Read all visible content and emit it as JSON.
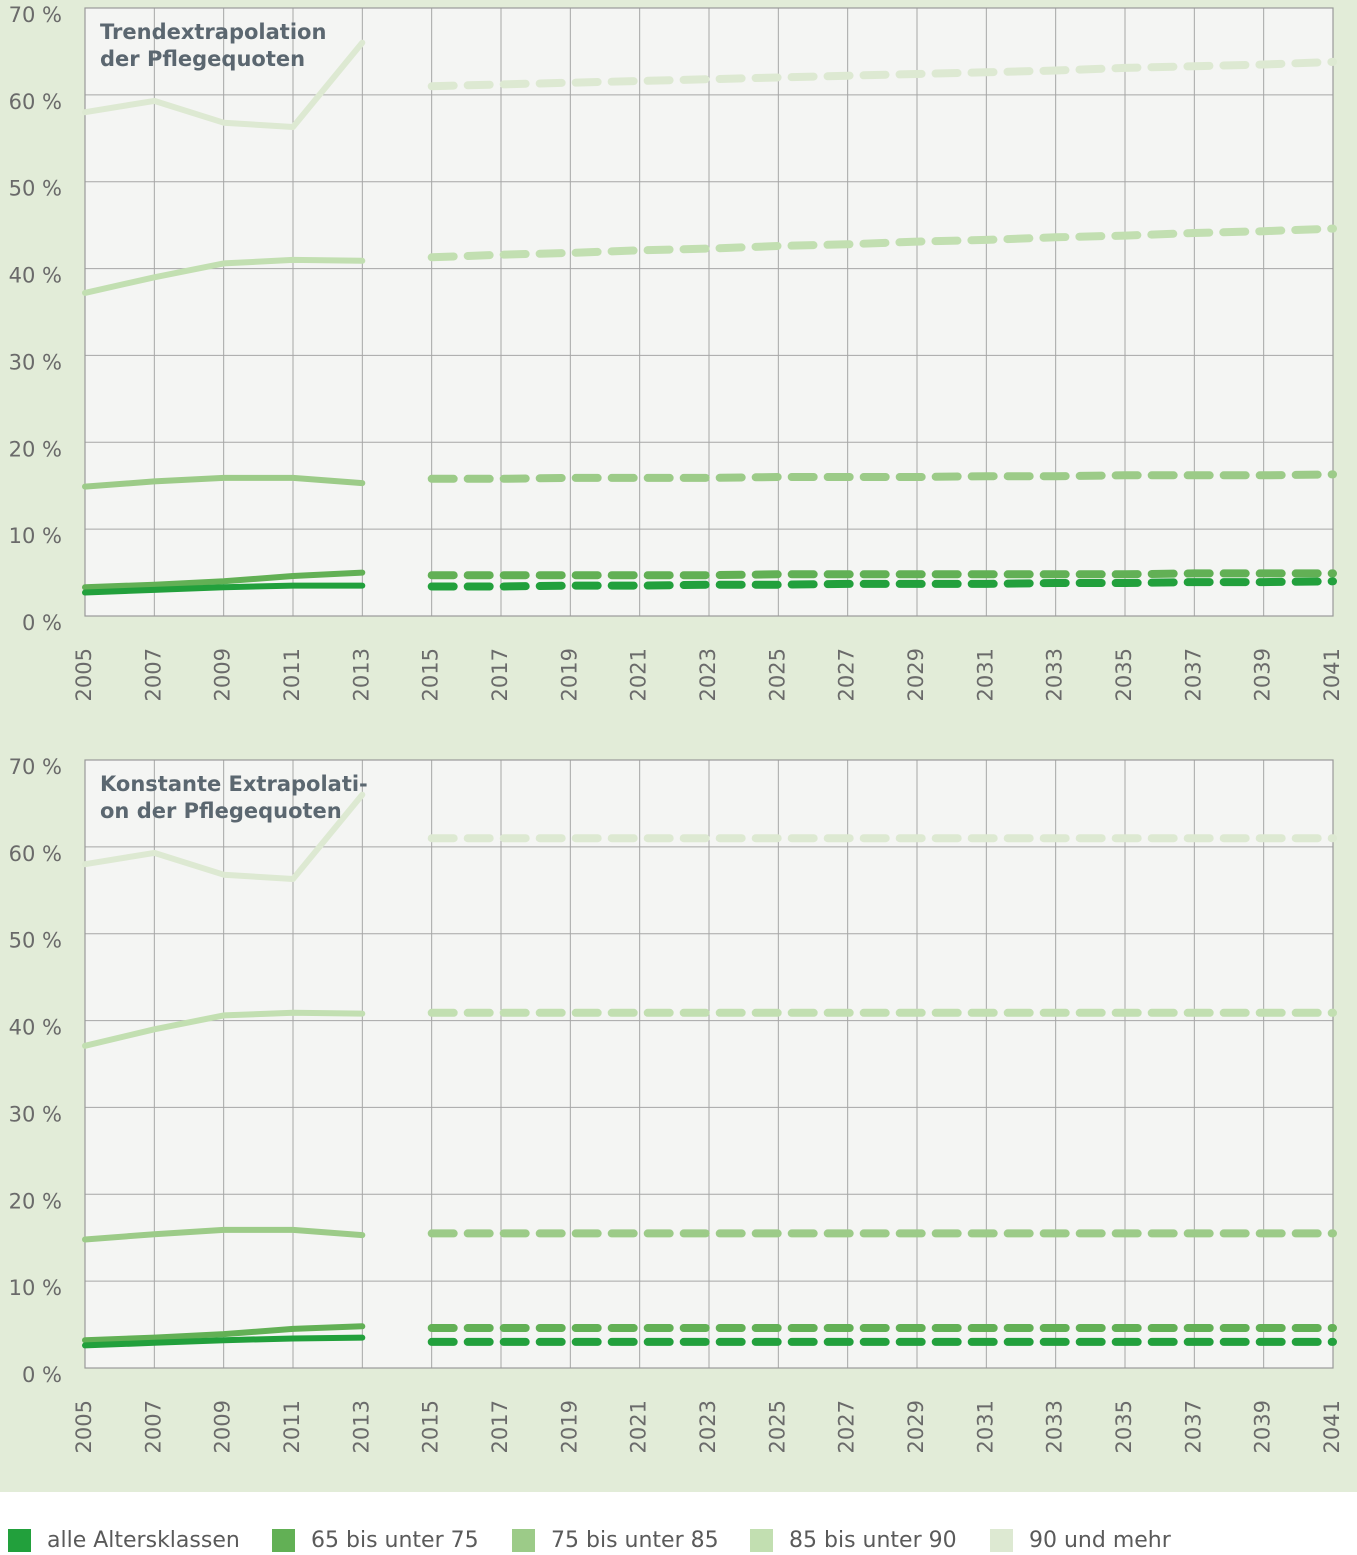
{
  "chart_data": [
    {
      "type": "line",
      "title": [
        "Trendextrapolation",
        "der Pflegequoten"
      ],
      "x": [
        2005,
        2007,
        2009,
        2011,
        2013
      ],
      "projection_x": [
        2015,
        2017,
        2019,
        2021,
        2023,
        2025,
        2027,
        2029,
        2031,
        2033,
        2035,
        2037,
        2039,
        2041
      ],
      "xlim": [
        2005,
        2041
      ],
      "xticks": [
        2005,
        2007,
        2009,
        2011,
        2013,
        2015,
        2017,
        2019,
        2021,
        2023,
        2025,
        2027,
        2029,
        2031,
        2033,
        2035,
        2037,
        2039,
        2041
      ],
      "ylim": [
        0,
        70
      ],
      "yticks": [
        {
          "value": 0,
          "label": "0 %"
        },
        {
          "value": 10,
          "label": "10 %"
        },
        {
          "value": 20,
          "label": "20 %"
        },
        {
          "value": 30,
          "label": "30 %"
        },
        {
          "value": 40,
          "label": "40 %"
        },
        {
          "value": 50,
          "label": "50 %"
        },
        {
          "value": 60,
          "label": "60 %"
        },
        {
          "value": 70,
          "label": "70 %"
        }
      ],
      "grid": true,
      "series": [
        {
          "name": "alle Altersklassen",
          "color": "#22a03c",
          "values": [
            2.7,
            3.0,
            3.3,
            3.5,
            3.5
          ],
          "projection": [
            3.4,
            3.4,
            3.5,
            3.5,
            3.6,
            3.6,
            3.7,
            3.7,
            3.7,
            3.8,
            3.8,
            3.9,
            3.9,
            4.0
          ]
        },
        {
          "name": "65 bis unter 75",
          "color": "#62b055",
          "values": [
            3.3,
            3.6,
            4.0,
            4.6,
            5.0
          ],
          "projection": [
            4.7,
            4.7,
            4.7,
            4.7,
            4.7,
            4.8,
            4.8,
            4.8,
            4.8,
            4.8,
            4.8,
            4.9,
            4.9,
            4.9
          ]
        },
        {
          "name": "75 bis unter 85",
          "color": "#9ccb88",
          "values": [
            14.9,
            15.5,
            15.9,
            15.9,
            15.3
          ],
          "projection": [
            15.8,
            15.8,
            15.9,
            15.9,
            15.9,
            16.0,
            16.0,
            16.0,
            16.1,
            16.1,
            16.2,
            16.2,
            16.2,
            16.3
          ]
        },
        {
          "name": "85 bis unter 90",
          "color": "#c2dfb1",
          "values": [
            37.2,
            39.0,
            40.6,
            41.0,
            40.9
          ],
          "projection": [
            41.3,
            41.6,
            41.8,
            42.1,
            42.3,
            42.6,
            42.8,
            43.1,
            43.3,
            43.6,
            43.8,
            44.1,
            44.3,
            44.6
          ]
        },
        {
          "name": "90 und mehr",
          "color": "#dde9d2",
          "values": [
            58.0,
            59.3,
            56.8,
            56.3,
            66.0
          ],
          "projection": [
            61.0,
            61.2,
            61.4,
            61.6,
            61.8,
            62.0,
            62.2,
            62.4,
            62.6,
            62.8,
            63.1,
            63.3,
            63.5,
            63.8
          ]
        }
      ]
    },
    {
      "type": "line",
      "title": [
        "Konstante Extrapolati-",
        "on der Pflegequoten"
      ],
      "x": [
        2005,
        2007,
        2009,
        2011,
        2013
      ],
      "projection_x": [
        2015,
        2017,
        2019,
        2021,
        2023,
        2025,
        2027,
        2029,
        2031,
        2033,
        2035,
        2037,
        2039,
        2041
      ],
      "xlim": [
        2005,
        2041
      ],
      "xticks": [
        2005,
        2007,
        2009,
        2011,
        2013,
        2015,
        2017,
        2019,
        2021,
        2023,
        2025,
        2027,
        2029,
        2031,
        2033,
        2035,
        2037,
        2039,
        2041
      ],
      "ylim": [
        0,
        70
      ],
      "yticks": [
        {
          "value": 0,
          "label": "0 %"
        },
        {
          "value": 10,
          "label": "10 %"
        },
        {
          "value": 20,
          "label": "20 %"
        },
        {
          "value": 30,
          "label": "30 %"
        },
        {
          "value": 40,
          "label": "40 %"
        },
        {
          "value": 50,
          "label": "50 %"
        },
        {
          "value": 60,
          "label": "60 %"
        },
        {
          "value": 70,
          "label": "70 %"
        }
      ],
      "grid": true,
      "series": [
        {
          "color": "#22a03c",
          "values": [
            2.6,
            2.9,
            3.2,
            3.4,
            3.5
          ],
          "projection": [
            3.0,
            3.0,
            3.0,
            3.0,
            3.0,
            3.0,
            3.0,
            3.0,
            3.0,
            3.0,
            3.0,
            3.0,
            3.0,
            3.0
          ]
        },
        {
          "color": "#62b055",
          "values": [
            3.2,
            3.5,
            3.9,
            4.5,
            4.8
          ],
          "projection": [
            4.6,
            4.6,
            4.6,
            4.6,
            4.6,
            4.6,
            4.6,
            4.6,
            4.6,
            4.6,
            4.6,
            4.6,
            4.6,
            4.6
          ]
        },
        {
          "color": "#9ccb88",
          "values": [
            14.8,
            15.4,
            15.9,
            15.9,
            15.3
          ],
          "projection": [
            15.5,
            15.5,
            15.5,
            15.5,
            15.5,
            15.5,
            15.5,
            15.5,
            15.5,
            15.5,
            15.5,
            15.5,
            15.5,
            15.5
          ]
        },
        {
          "color": "#c2dfb1",
          "values": [
            37.1,
            39.0,
            40.6,
            40.9,
            40.8
          ],
          "projection": [
            40.9,
            40.9,
            40.9,
            40.9,
            40.9,
            40.9,
            40.9,
            40.9,
            40.9,
            40.9,
            40.9,
            40.9,
            40.9,
            40.9
          ]
        },
        {
          "color": "#dde9d2",
          "values": [
            58.0,
            59.3,
            56.8,
            56.3,
            66.0
          ],
          "projection": [
            61.0,
            61.0,
            61.0,
            61.0,
            61.0,
            61.0,
            61.0,
            61.0,
            61.0,
            61.0,
            61.0,
            61.0,
            61.0,
            61.0
          ]
        }
      ]
    }
  ]
}
